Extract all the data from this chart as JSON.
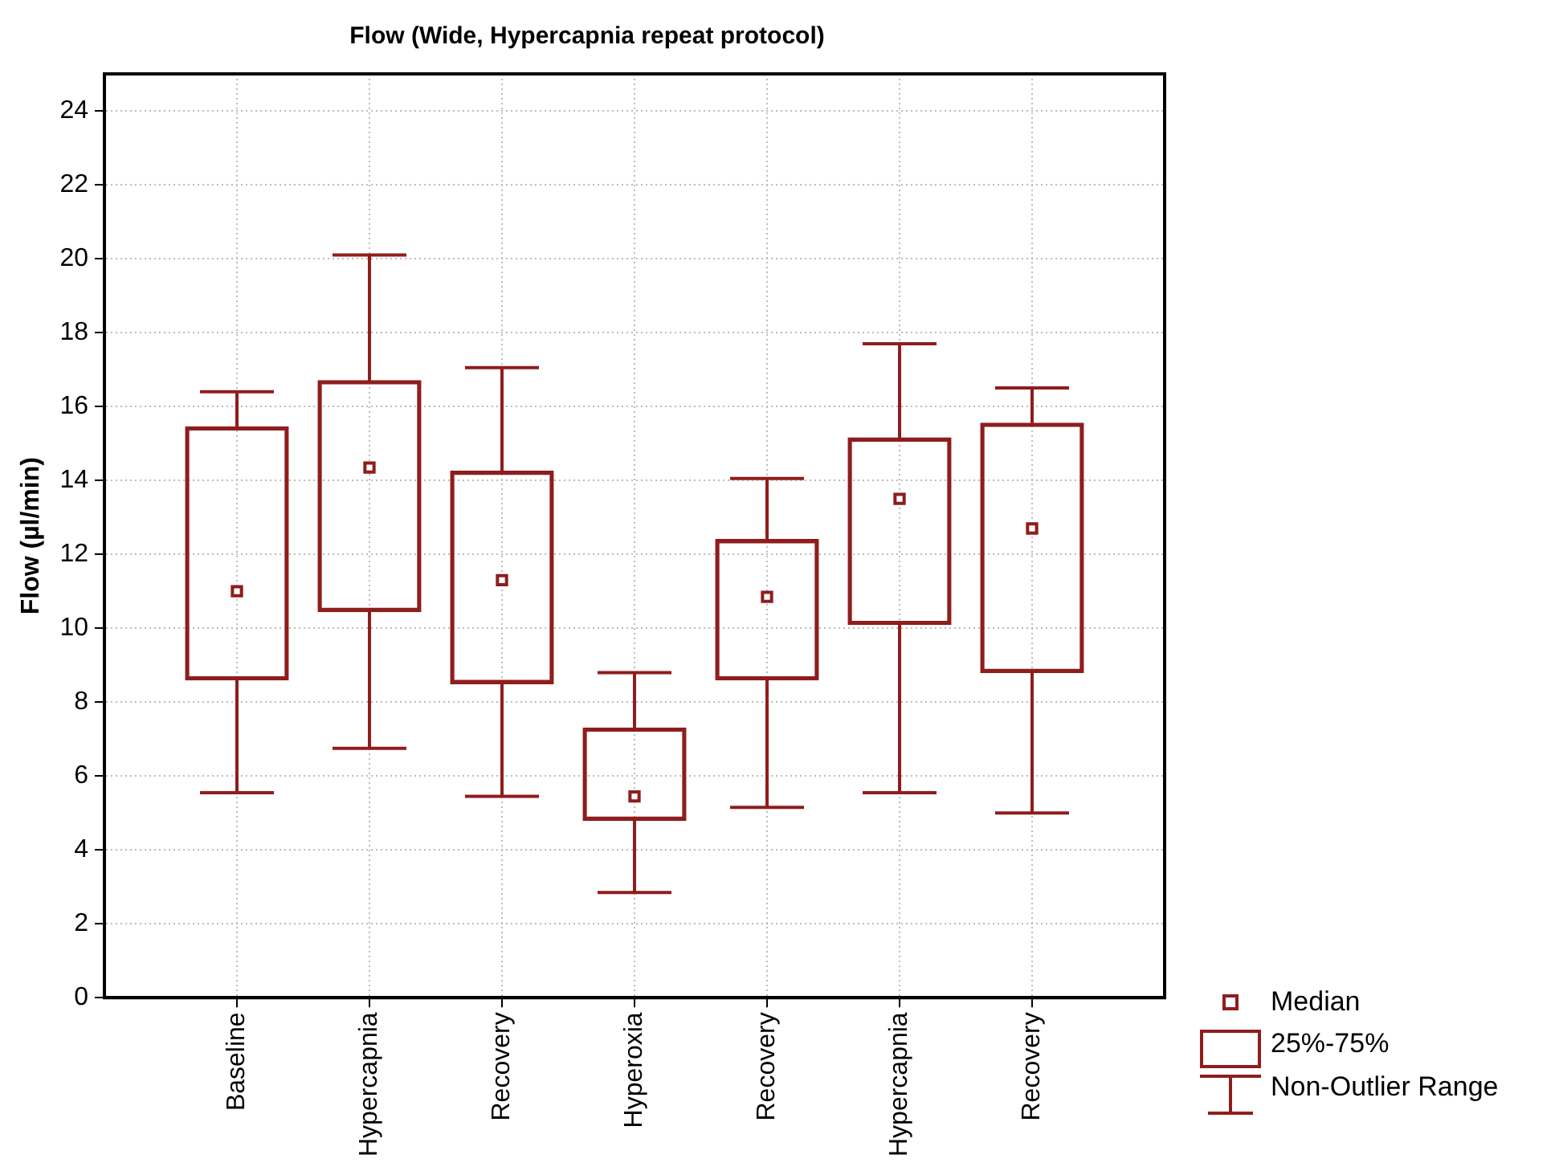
{
  "chart_data": {
    "type": "box",
    "title": "Flow (Wide, Hypercapnia repeat protocol)",
    "ylabel": "Flow (µl/min)",
    "categories": [
      "Baseline",
      "Hypercapnia",
      "Recovery",
      "Hyperoxia",
      "Recovery",
      "Hypercapnia",
      "Recovery"
    ],
    "color": "#8f1d1d",
    "boxes": [
      {
        "low": 5.55,
        "q1": 8.6,
        "median": 11.0,
        "q3": 15.45,
        "high": 16.4
      },
      {
        "low": 6.75,
        "q1": 10.45,
        "median": 14.35,
        "q3": 16.7,
        "high": 20.1
      },
      {
        "low": 5.45,
        "q1": 8.5,
        "median": 11.3,
        "q3": 14.25,
        "high": 17.05
      },
      {
        "low": 2.85,
        "q1": 4.8,
        "median": 5.45,
        "q3": 7.3,
        "high": 8.8
      },
      {
        "low": 5.15,
        "q1": 8.6,
        "median": 10.85,
        "q3": 12.4,
        "high": 14.05
      },
      {
        "low": 5.55,
        "q1": 10.1,
        "median": 13.5,
        "q3": 15.15,
        "high": 17.7
      },
      {
        "low": 5.0,
        "q1": 8.8,
        "median": 12.7,
        "q3": 15.55,
        "high": 16.5
      }
    ],
    "ylim": [
      0,
      25
    ],
    "yticks": [
      0,
      2,
      4,
      6,
      8,
      10,
      12,
      14,
      16,
      18,
      20,
      22,
      24
    ],
    "grid": true,
    "annotations": [
      "Median",
      "25%-75%",
      "Non-Outlier Range"
    ]
  }
}
